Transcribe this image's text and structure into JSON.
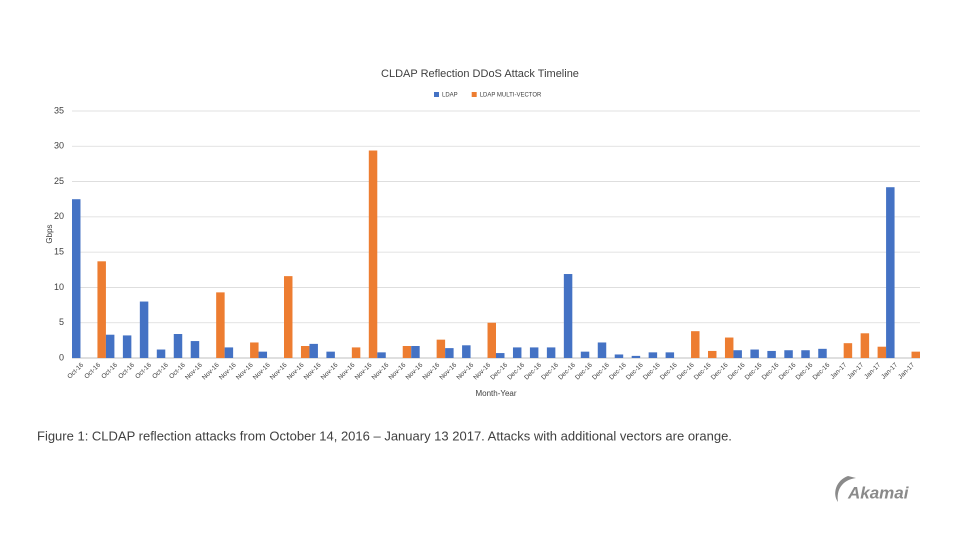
{
  "chart_data": {
    "type": "bar",
    "title": "CLDAP Reflection DDoS Attack Timeline",
    "xlabel": "Month-Year",
    "ylabel": "Gbps",
    "categories": [
      "Oct-16",
      "Oct-16",
      "Oct-16",
      "Oct-16",
      "Oct-16",
      "Oct-16",
      "Oct-16",
      "Nov-16",
      "Nov-16",
      "Nov-16",
      "Nov-16",
      "Nov-16",
      "Nov-16",
      "Nov-16",
      "Nov-16",
      "Nov-16",
      "Nov-16",
      "Nov-16",
      "Nov-16",
      "Nov-16",
      "Nov-16",
      "Nov-16",
      "Nov-16",
      "Nov-16",
      "Nov-16",
      "Dec-16",
      "Dec-16",
      "Dec-16",
      "Dec-16",
      "Dec-16",
      "Dec-16",
      "Dec-16",
      "Dec-16",
      "Dec-16",
      "Dec-16",
      "Dec-16",
      "Dec-16",
      "Dec-16",
      "Dec-16",
      "Dec-16",
      "Dec-16",
      "Dec-16",
      "Dec-16",
      "Dec-16",
      "Dec-16",
      "Jan-17",
      "Jan-17",
      "Jan-17",
      "Jan-17",
      "Jan-17"
    ],
    "series": [
      {
        "name": "LDAP",
        "color": "#4472c4",
        "values": [
          22.5,
          null,
          3.3,
          3.2,
          8,
          1.2,
          3.4,
          2.4,
          null,
          1.5,
          null,
          0.9,
          null,
          null,
          2.0,
          0.9,
          null,
          null,
          0.8,
          null,
          1.7,
          null,
          1.4,
          1.8,
          null,
          0.7,
          1.5,
          1.5,
          1.5,
          11.9,
          0.9,
          2.2,
          0.5,
          0.3,
          0.8,
          0.8,
          null,
          null,
          null,
          1.1,
          1.2,
          1.0,
          1.1,
          1.1,
          1.3,
          null,
          null,
          null,
          24.2,
          null
        ]
      },
      {
        "name": "LDAP MULTI-VECTOR",
        "color": "#ed7d31",
        "values": [
          null,
          13.7,
          null,
          null,
          null,
          null,
          null,
          null,
          9.3,
          null,
          2.2,
          null,
          11.6,
          1.7,
          null,
          null,
          1.5,
          29.4,
          null,
          1.7,
          null,
          2.6,
          null,
          null,
          5.0,
          null,
          null,
          null,
          null,
          null,
          null,
          null,
          null,
          null,
          null,
          null,
          3.8,
          1.0,
          2.9,
          null,
          null,
          null,
          null,
          null,
          null,
          2.1,
          3.5,
          1.6,
          null,
          0.9
        ]
      }
    ],
    "ylim": [
      0,
      35
    ],
    "yticks": [
      0,
      5,
      10,
      15,
      20,
      25,
      30,
      35
    ],
    "grid": true,
    "legend": "top"
  },
  "caption": "Figure 1: CLDAP reflection attacks from October 14, 2016 – January 13 2017. Attacks with additional vectors are orange.",
  "logo": "Akamai"
}
